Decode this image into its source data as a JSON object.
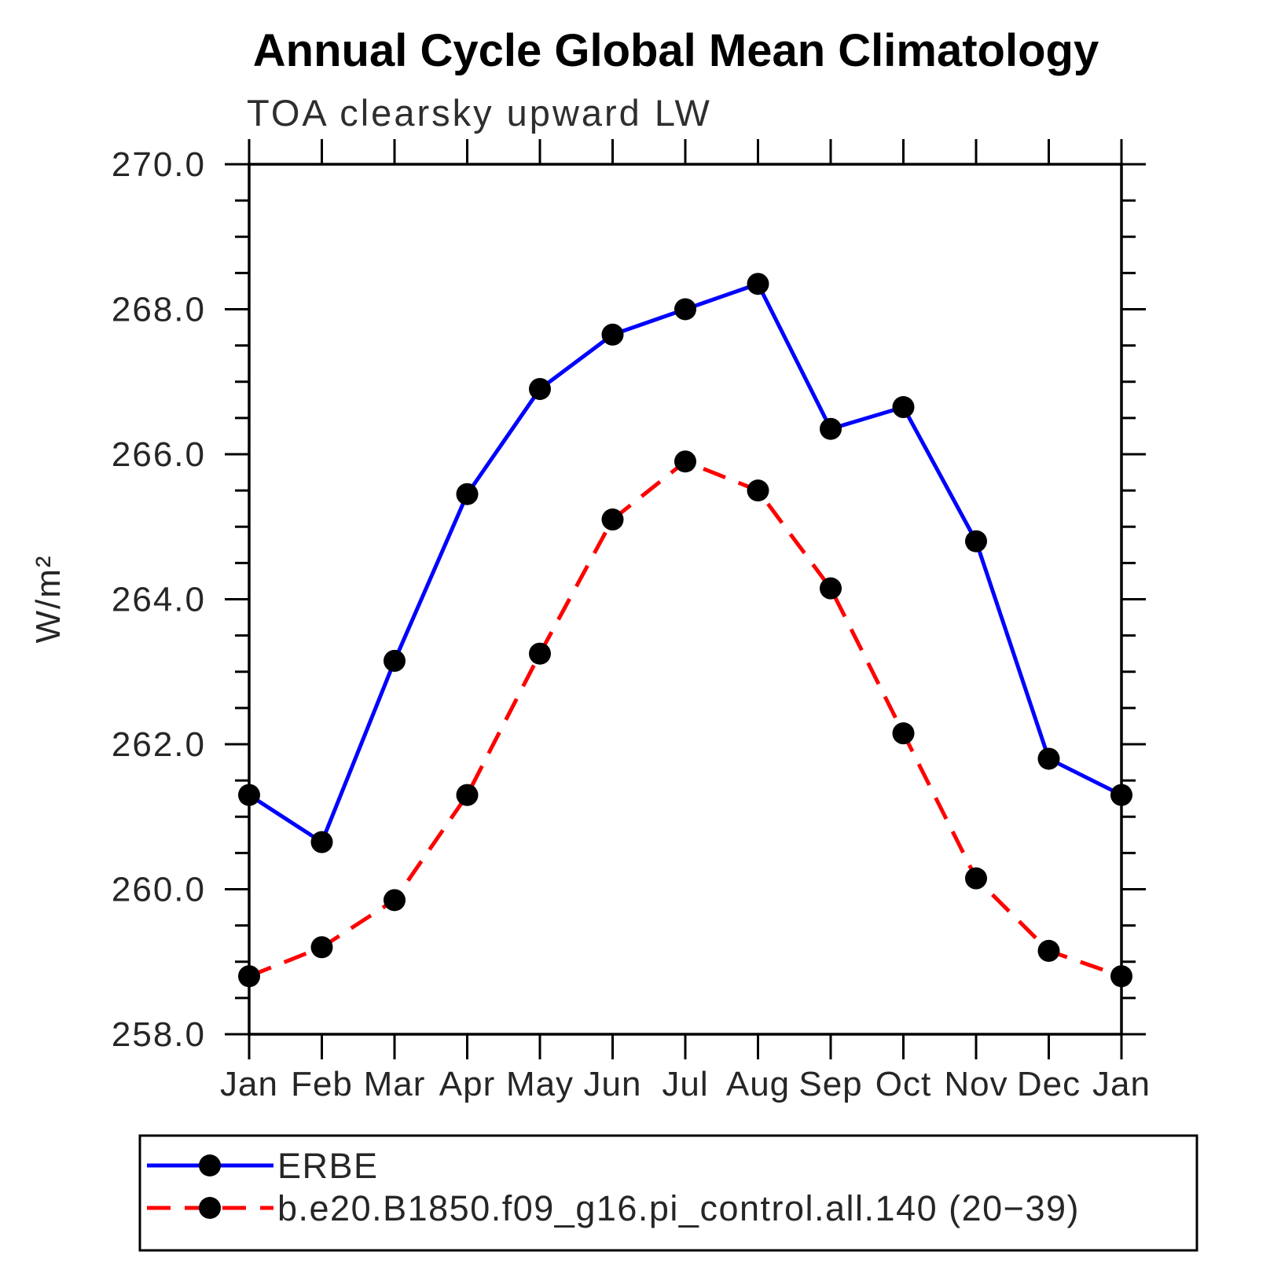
{
  "chart_data": {
    "type": "line",
    "title": "Annual Cycle Global Mean Climatology",
    "subtitle": "TOA clearsky upward LW",
    "ylabel": "W/m²",
    "xlabel": "",
    "categories": [
      "Jan",
      "Feb",
      "Mar",
      "Apr",
      "May",
      "Jun",
      "Jul",
      "Aug",
      "Sep",
      "Oct",
      "Nov",
      "Dec",
      "Jan"
    ],
    "ylim": [
      258.0,
      270.0
    ],
    "ytick_major_step": 2.0,
    "ytick_minor_step": 0.5,
    "ytick_labels": [
      "258.0",
      "260.0",
      "262.0",
      "264.0",
      "266.0",
      "268.0",
      "270.0"
    ],
    "grid": false,
    "legend_position": "bottom-left",
    "axis_color": "#000000",
    "marker_color": "#000000",
    "series": [
      {
        "name": "ERBE",
        "color": "#0000ff",
        "style": "solid",
        "marker": "circle",
        "values": [
          261.3,
          260.65,
          263.15,
          265.45,
          266.9,
          267.65,
          268.0,
          268.35,
          266.35,
          266.65,
          264.8,
          261.8,
          261.3
        ]
      },
      {
        "name": "b.e20.B1850.f09_g16.pi_control.all.140 (20−39)",
        "color": "#ff0000",
        "style": "dashed",
        "marker": "circle",
        "values": [
          258.8,
          259.2,
          259.85,
          261.3,
          263.25,
          265.1,
          265.9,
          265.5,
          264.15,
          262.15,
          260.15,
          259.15,
          258.8
        ]
      }
    ]
  }
}
